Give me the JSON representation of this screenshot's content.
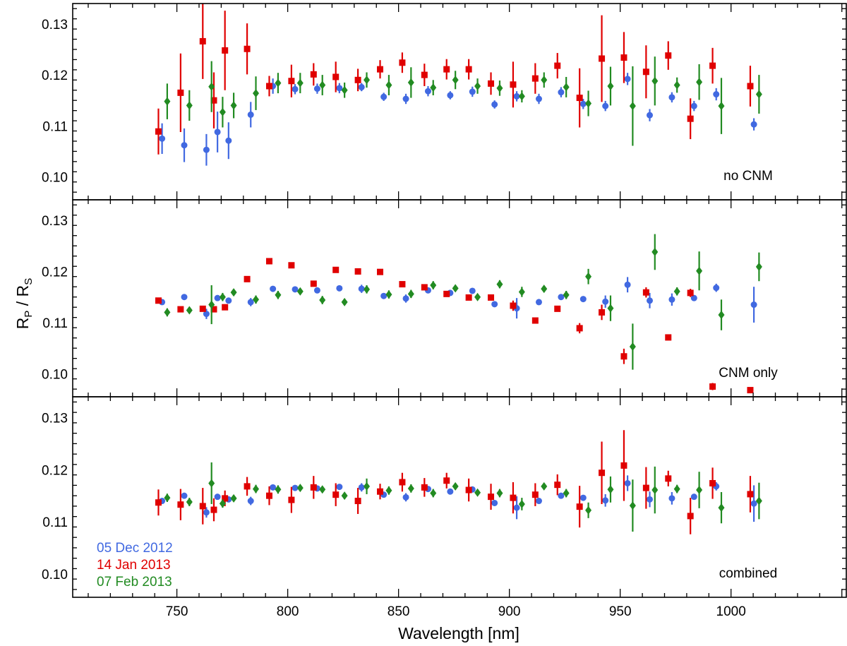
{
  "chart_data": {
    "type": "scatter",
    "xlabel": "Wavelength [nm]",
    "ylabel_main": "R",
    "ylabel_sub1": "P",
    "ylabel_sep": " / R",
    "ylabel_sub2": "S",
    "xlim": [
      703,
      1052
    ],
    "xticks": [
      750,
      800,
      850,
      900,
      950,
      1000
    ],
    "xtick_labels": [
      "750",
      "800",
      "850",
      "900",
      "950",
      "1000"
    ],
    "ylim": [
      0.0955,
      0.134
    ],
    "yticks": [
      0.1,
      0.11,
      0.12,
      0.13
    ],
    "ytick_labels": [
      "0.10",
      "0.11",
      "0.12",
      "0.13"
    ],
    "series_styles": [
      {
        "name": "05 Dec 2012",
        "color": "#4169e1",
        "marker": "circle",
        "x_offset": 1
      },
      {
        "name": "14 Jan 2013",
        "color": "#e00000",
        "marker": "square",
        "x_offset": -1
      },
      {
        "name": "07 Feb 2013",
        "color": "#228b22",
        "marker": "diamond",
        "x_offset": 2
      }
    ],
    "legend_entries": [
      "05 Dec 2012",
      "14 Jan 2013",
      "07 Feb 2013"
    ],
    "legend_placement": "bottom-left of lowest panel",
    "panels": [
      {
        "label": "no CNM",
        "series": [
          {
            "name": "05 Dec 2012",
            "x": [
              743,
              753,
              763,
              768,
              773,
              783,
              793,
              803,
              813,
              823,
              833,
              843,
              853,
              863,
              873,
              883,
              893,
              903,
              913,
              923,
              933,
              943,
              953,
              963,
              973,
              983,
              993,
              1010
            ],
            "y": [
              0.1075,
              0.1062,
              0.1053,
              0.1088,
              0.1071,
              0.1122,
              0.1178,
              0.1172,
              0.1173,
              0.1174,
              0.1176,
              0.1157,
              0.1153,
              0.1168,
              0.116,
              0.1167,
              0.1142,
              0.1158,
              0.1153,
              0.1166,
              0.1143,
              0.1139,
              0.1192,
              0.1121,
              0.1156,
              0.1139,
              0.1162,
              0.1103
            ],
            "err": [
              0.003,
              0.0033,
              0.0031,
              0.004,
              0.0036,
              0.0025,
              0.0015,
              0.001,
              0.001,
              0.001,
              0.0008,
              0.0008,
              0.001,
              0.001,
              0.0008,
              0.001,
              0.0008,
              0.001,
              0.001,
              0.001,
              0.001,
              0.001,
              0.0012,
              0.0012,
              0.001,
              0.001,
              0.0012,
              0.0012
            ]
          },
          {
            "name": "14 Jan 2013",
            "x": [
              742,
              752,
              762,
              767,
              772,
              782,
              792,
              802,
              812,
              822,
              832,
              842,
              852,
              862,
              872,
              882,
              892,
              902,
              912,
              922,
              932,
              942,
              952,
              962,
              972,
              982,
              992,
              1009
            ],
            "y": [
              0.1089,
              0.1165,
              0.1266,
              0.115,
              0.1248,
              0.1251,
              0.1178,
              0.1188,
              0.1201,
              0.1196,
              0.119,
              0.1211,
              0.1224,
              0.12,
              0.1211,
              0.1211,
              0.1183,
              0.1181,
              0.1193,
              0.1218,
              0.1155,
              0.1232,
              0.1234,
              0.1206,
              0.1238,
              0.1114,
              0.1218,
              0.1178
            ],
            "err": [
              0.0045,
              0.0077,
              0.0074,
              0.0055,
              0.0078,
              0.005,
              0.002,
              0.0032,
              0.0022,
              0.003,
              0.0022,
              0.0018,
              0.002,
              0.0022,
              0.002,
              0.002,
              0.0022,
              0.0045,
              0.003,
              0.0025,
              0.0058,
              0.0085,
              0.005,
              0.0052,
              0.0028,
              0.004,
              0.0035,
              0.004
            ]
          },
          {
            "name": "07 Feb 2013",
            "x": [
              745,
              755,
              765,
              770,
              775,
              785,
              795,
              805,
              815,
              825,
              835,
              845,
              855,
              865,
              875,
              885,
              895,
              905,
              915,
              925,
              935,
              945,
              955,
              965,
              975,
              985,
              995,
              1012
            ],
            "y": [
              0.1148,
              0.114,
              0.1177,
              0.1127,
              0.114,
              0.1164,
              0.1184,
              0.1184,
              0.118,
              0.117,
              0.119,
              0.118,
              0.1185,
              0.1175,
              0.119,
              0.1178,
              0.1174,
              0.1158,
              0.119,
              0.1176,
              0.1144,
              0.1178,
              0.1139,
              0.1188,
              0.118,
              0.1186,
              0.1139,
              0.1162
            ],
            "err": [
              0.0035,
              0.003,
              0.005,
              0.003,
              0.0025,
              0.0033,
              0.002,
              0.002,
              0.002,
              0.0015,
              0.0015,
              0.002,
              0.003,
              0.0015,
              0.0018,
              0.0015,
              0.0015,
              0.0012,
              0.0015,
              0.002,
              0.0025,
              0.0038,
              0.0078,
              0.0048,
              0.0015,
              0.0035,
              0.0055,
              0.0038
            ]
          }
        ]
      },
      {
        "label": "CNM only",
        "series": [
          {
            "name": "05 Dec 2012",
            "x": [
              743,
              753,
              763,
              768,
              773,
              783,
              793,
              803,
              813,
              823,
              833,
              843,
              853,
              863,
              873,
              883,
              893,
              903,
              913,
              923,
              933,
              943,
              953,
              963,
              973,
              983,
              993,
              1010
            ],
            "y": [
              0.114,
              0.115,
              0.1117,
              0.1148,
              0.1143,
              0.114,
              0.1166,
              0.1165,
              0.1163,
              0.1167,
              0.1166,
              0.1152,
              0.1147,
              0.1163,
              0.1158,
              0.1162,
              0.1136,
              0.1128,
              0.114,
              0.115,
              0.1146,
              0.1141,
              0.1174,
              0.1143,
              0.1145,
              0.1148,
              0.1168,
              0.1135
            ],
            "err": [
              0.0005,
              0.0005,
              0.001,
              0.0005,
              0.0005,
              0.0008,
              0.0005,
              0.0005,
              0.0005,
              0.0005,
              0.0008,
              0.0005,
              0.0008,
              0.0005,
              0.0005,
              0.0005,
              0.0005,
              0.002,
              0.0005,
              0.0005,
              0.0005,
              0.0012,
              0.0015,
              0.0015,
              0.0012,
              0.0005,
              0.0008,
              0.0035
            ]
          },
          {
            "name": "14 Jan 2013",
            "x": [
              742,
              752,
              762,
              767,
              772,
              782,
              792,
              802,
              812,
              822,
              832,
              842,
              852,
              862,
              872,
              882,
              892,
              902,
              912,
              922,
              932,
              942,
              952,
              962,
              972,
              982,
              992,
              1009
            ],
            "y": [
              0.1143,
              0.1126,
              0.1127,
              0.1126,
              0.113,
              0.1185,
              0.122,
              0.1212,
              0.1176,
              0.1203,
              0.12,
              0.1199,
              0.1175,
              0.1169,
              0.1156,
              0.1149,
              0.1149,
              0.1133,
              0.1104,
              0.1127,
              0.1089,
              0.112,
              0.1034,
              0.1159,
              0.1071,
              0.1158,
              0.0975,
              0.0968
            ],
            "err": [
              0.0005,
              0.0005,
              0.0005,
              0.0005,
              0.0005,
              0.0005,
              0.0005,
              0.0005,
              0.0005,
              0.0005,
              0.0005,
              0.0005,
              0.0005,
              0.0005,
              0.0005,
              0.0005,
              0.0005,
              0.001,
              0.0005,
              0.0005,
              0.001,
              0.0015,
              0.0015,
              0.001,
              0.0005,
              0.0008,
              0.0007,
              0.0005
            ]
          },
          {
            "name": "07 Feb 2013",
            "x": [
              745,
              755,
              765,
              770,
              775,
              785,
              795,
              805,
              815,
              825,
              835,
              845,
              855,
              865,
              875,
              885,
              895,
              905,
              915,
              925,
              935,
              945,
              955,
              965,
              975,
              985,
              995,
              1012
            ],
            "y": [
              0.112,
              0.1124,
              0.1135,
              0.115,
              0.1159,
              0.1145,
              0.1154,
              0.1161,
              0.1144,
              0.114,
              0.1165,
              0.1155,
              0.1156,
              0.1173,
              0.1167,
              0.115,
              0.1175,
              0.116,
              0.1166,
              0.1154,
              0.119,
              0.1128,
              0.1053,
              0.1238,
              0.1161,
              0.1201,
              0.1115,
              0.1209
            ],
            "err": [
              0.0008,
              0.0005,
              0.0038,
              0.0008,
              0.0005,
              0.0008,
              0.0008,
              0.0005,
              0.0008,
              0.0005,
              0.0008,
              0.0008,
              0.0008,
              0.0008,
              0.0005,
              0.0005,
              0.0008,
              0.001,
              0.0005,
              0.0008,
              0.0015,
              0.0025,
              0.0045,
              0.0035,
              0.0008,
              0.0038,
              0.003,
              0.0028
            ]
          }
        ]
      },
      {
        "label": "combined",
        "series": [
          {
            "name": "05 Dec 2012",
            "x": [
              743,
              753,
              763,
              768,
              773,
              783,
              793,
              803,
              813,
              823,
              833,
              843,
              853,
              863,
              873,
              883,
              893,
              903,
              913,
              923,
              933,
              943,
              953,
              963,
              973,
              983,
              993,
              1010
            ],
            "y": [
              0.114,
              0.115,
              0.1118,
              0.1148,
              0.1143,
              0.114,
              0.1166,
              0.1165,
              0.1164,
              0.1167,
              0.1166,
              0.1152,
              0.1147,
              0.1163,
              0.1158,
              0.1162,
              0.1136,
              0.1127,
              0.114,
              0.115,
              0.1146,
              0.1141,
              0.1174,
              0.1143,
              0.1145,
              0.1148,
              0.1168,
              0.1135
            ],
            "err": [
              0.0005,
              0.0005,
              0.001,
              0.0005,
              0.0005,
              0.0008,
              0.0005,
              0.0005,
              0.0005,
              0.0005,
              0.0008,
              0.0005,
              0.0008,
              0.0005,
              0.0005,
              0.0005,
              0.0005,
              0.0022,
              0.0005,
              0.0005,
              0.0005,
              0.0012,
              0.0015,
              0.0015,
              0.0012,
              0.0005,
              0.0008,
              0.0035
            ]
          },
          {
            "name": "14 Jan 2013",
            "x": [
              742,
              752,
              762,
              767,
              772,
              782,
              792,
              802,
              812,
              822,
              832,
              842,
              852,
              862,
              872,
              882,
              892,
              902,
              912,
              922,
              932,
              942,
              952,
              962,
              972,
              982,
              992,
              1009
            ],
            "y": [
              0.1137,
              0.1133,
              0.113,
              0.1123,
              0.1145,
              0.1168,
              0.115,
              0.1142,
              0.1166,
              0.1152,
              0.114,
              0.1158,
              0.1176,
              0.1166,
              0.1179,
              0.1161,
              0.1148,
              0.1146,
              0.1152,
              0.1171,
              0.1129,
              0.1194,
              0.1208,
              0.1165,
              0.1183,
              0.1111,
              0.1174,
              0.1153
            ],
            "err": [
              0.0025,
              0.003,
              0.0035,
              0.0022,
              0.0015,
              0.0018,
              0.0018,
              0.0025,
              0.0022,
              0.0022,
              0.0025,
              0.0015,
              0.0018,
              0.0018,
              0.0015,
              0.0022,
              0.0025,
              0.003,
              0.0022,
              0.002,
              0.004,
              0.006,
              0.0068,
              0.004,
              0.0015,
              0.0035,
              0.003,
              0.0035
            ]
          },
          {
            "name": "07 Feb 2013",
            "x": [
              745,
              755,
              765,
              770,
              775,
              785,
              795,
              805,
              815,
              825,
              835,
              845,
              855,
              865,
              875,
              885,
              895,
              905,
              915,
              925,
              935,
              945,
              955,
              965,
              975,
              985,
              995,
              1012
            ],
            "y": [
              0.1146,
              0.1138,
              0.1174,
              0.1135,
              0.1145,
              0.1163,
              0.1162,
              0.1165,
              0.1162,
              0.115,
              0.1168,
              0.116,
              0.1164,
              0.1155,
              0.1168,
              0.1156,
              0.1155,
              0.1134,
              0.1168,
              0.1155,
              0.1122,
              0.1162,
              0.1131,
              0.1161,
              0.1163,
              0.1161,
              0.1127,
              0.114
            ],
            "err": [
              0.0008,
              0.0008,
              0.004,
              0.0008,
              0.0005,
              0.0008,
              0.0008,
              0.0005,
              0.0005,
              0.0005,
              0.0015,
              0.0008,
              0.0008,
              0.0008,
              0.0005,
              0.0005,
              0.0008,
              0.0012,
              0.0005,
              0.0008,
              0.0015,
              0.0025,
              0.005,
              0.0045,
              0.0008,
              0.0035,
              0.003,
              0.0035
            ]
          }
        ]
      }
    ]
  }
}
